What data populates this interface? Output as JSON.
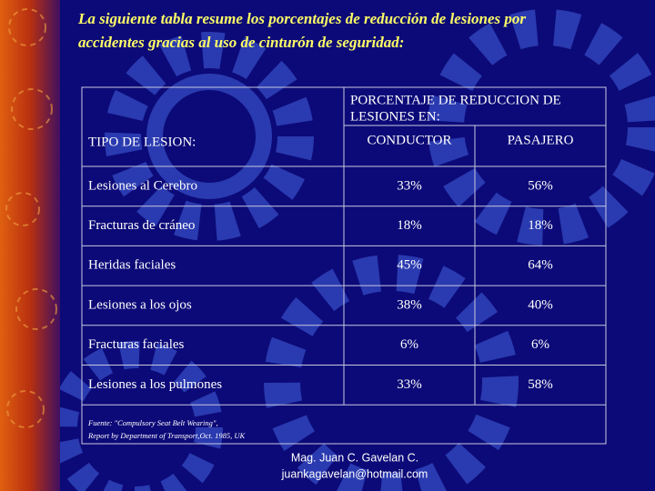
{
  "title": [
    "La siguiente tabla resume los porcentajes de reducción de lesiones por",
    "accidentes gracias al uso de cinturón de seguridad:"
  ],
  "table": {
    "group_header": [
      "PORCENTAJE DE REDUCCION DE",
      "LESIONES EN:"
    ],
    "first_header": "TIPO DE LESION:",
    "columns": [
      "CONDUCTOR",
      "PASAJERO"
    ],
    "rows": [
      [
        "Lesiones al Cerebro",
        "33%",
        "56%"
      ],
      [
        "Fracturas de cráneo",
        "18%",
        "18%"
      ],
      [
        "Heridas faciales",
        "45%",
        "64%"
      ],
      [
        "Lesiones a los ojos",
        "38%",
        "40%"
      ],
      [
        "Fracturas faciales",
        "6%",
        "6%"
      ],
      [
        "Lesiones a los pulmones",
        "33%",
        "58%"
      ]
    ],
    "source": [
      "Fuente: \"Compulsory Seat Belt Wearing\",",
      "Report by Department of Transport,Oct. 1985, UK"
    ]
  },
  "footer": [
    "Mag. Juan C. Gavelan C.",
    "juankagavelan@hotmail.com"
  ]
}
